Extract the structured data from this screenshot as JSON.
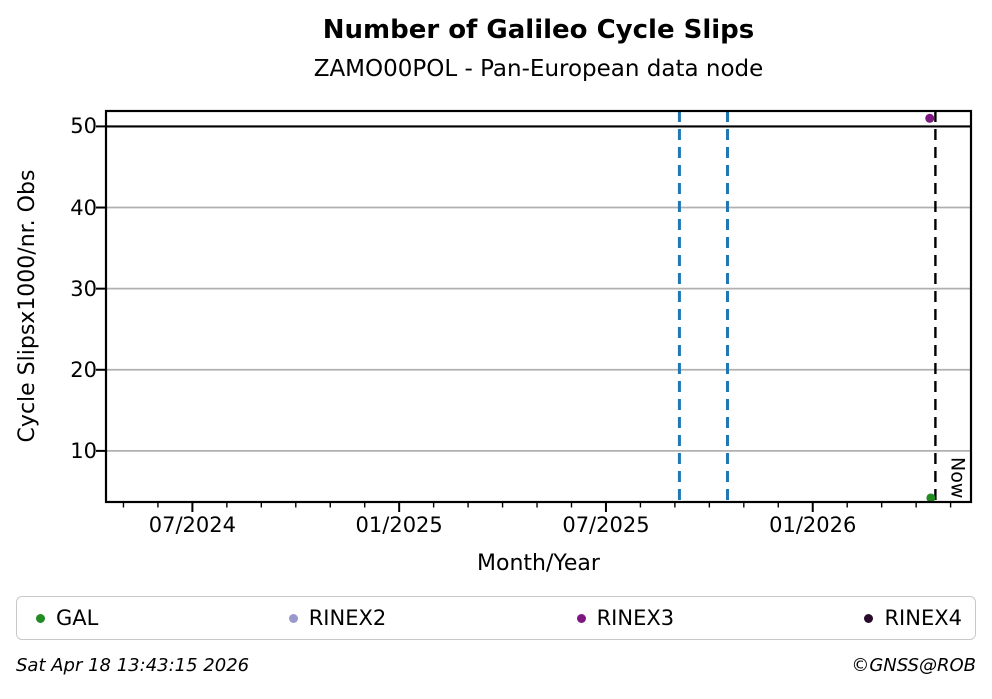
{
  "chart_data": {
    "type": "scatter",
    "title": "Number of Galileo Cycle Slips",
    "subtitle": "ZAMO00POL - Pan-European data node",
    "xlabel": "Month/Year",
    "ylabel": "Cycle Slipsx1000/nr. Obs",
    "x_domain": [
      "2024-04-16",
      "2026-05-19"
    ],
    "ylim": [
      3.7,
      51.9
    ],
    "y_ticks": [
      10,
      20,
      30,
      40,
      50
    ],
    "x_ticks": [
      {
        "date": "2024-07-01",
        "label": "07/2024"
      },
      {
        "date": "2025-01-01",
        "label": "01/2025"
      },
      {
        "date": "2025-07-01",
        "label": "07/2025"
      },
      {
        "date": "2026-01-01",
        "label": "01/2026"
      }
    ],
    "x_minor_ticks": "monthly",
    "grid": "horizontal-only",
    "grid_color": "#b0b0b0",
    "hlines": [
      {
        "y": 50,
        "color": "#000000",
        "style": "solid"
      }
    ],
    "vlines": [
      {
        "date": "2025-09-05",
        "color": "#1f77b4",
        "style": "dashed",
        "label": ""
      },
      {
        "date": "2025-10-17",
        "color": "#1f77b4",
        "style": "dashed",
        "label": ""
      },
      {
        "date": "2026-04-18",
        "color": "#000000",
        "style": "dashed",
        "label": "Now"
      }
    ],
    "series": [
      {
        "name": "GAL",
        "color": "#228b22",
        "points": [
          {
            "date": "2026-04-14",
            "value": 4.2
          }
        ]
      },
      {
        "name": "RINEX2",
        "color": "#9999cc",
        "points": []
      },
      {
        "name": "RINEX3",
        "color": "#7d1680",
        "points": [
          {
            "date": "2026-04-13",
            "value": 51.0
          }
        ]
      },
      {
        "name": "RINEX4",
        "color": "#2b0b2b",
        "points": []
      }
    ],
    "legend_position": "bottom"
  },
  "footer": {
    "timestamp": "Sat Apr 18 13:43:15 2026",
    "copyright": "©GNSS@ROB"
  }
}
